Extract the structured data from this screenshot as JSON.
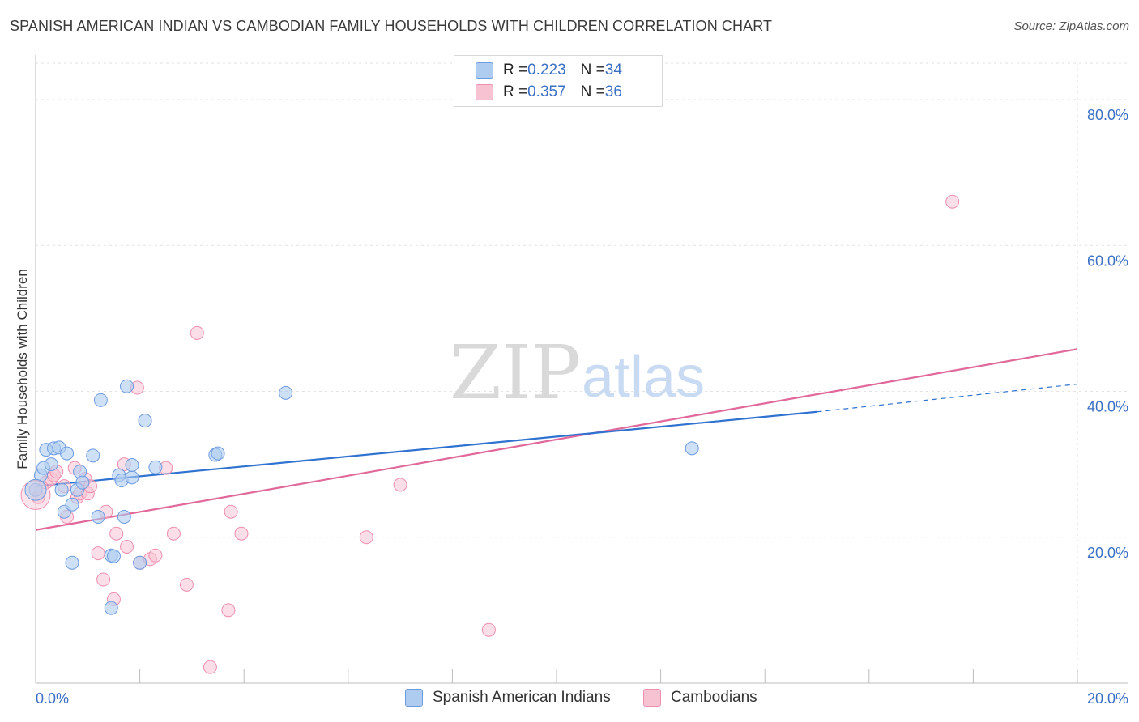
{
  "header": {
    "title": "SPANISH AMERICAN INDIAN VS CAMBODIAN FAMILY HOUSEHOLDS WITH CHILDREN CORRELATION CHART",
    "source": "Source: ZipAtlas.com"
  },
  "legend_top": {
    "rows": [
      {
        "r_label": "R = ",
        "r_value": "0.223",
        "n_label": "N = ",
        "n_value": "34"
      },
      {
        "r_label": "R = ",
        "r_value": "0.357",
        "n_label": "N = ",
        "n_value": "36"
      }
    ]
  },
  "legend_bottom": {
    "items": [
      "Spanish American Indians",
      "Cambodians"
    ]
  },
  "watermark": {
    "zip": "ZIP",
    "atlas": "atlas"
  },
  "colors": {
    "blue_fill": "#aecbf0",
    "blue_stroke": "#6d9be0",
    "blue_line": "#2f72d0",
    "pink_fill": "#f7c3d3",
    "pink_stroke": "#ee8fae",
    "pink_line": "#e0689a",
    "tick_label": "#3b6fc4",
    "grid": "#e2e2e2"
  },
  "chart_data": {
    "type": "scatter",
    "title": "SPANISH AMERICAN INDIAN VS CAMBODIAN FAMILY HOUSEHOLDS WITH CHILDREN CORRELATION CHART",
    "xlabel": "",
    "ylabel": "Family Households with Children",
    "xlim": [
      0,
      20
    ],
    "ylim": [
      0,
      85
    ],
    "x_tick_labels": [
      "0.0%",
      "20.0%"
    ],
    "y_ticks": [
      20,
      40,
      60,
      80
    ],
    "y_tick_labels": [
      "20.0%",
      "40.0%",
      "60.0%",
      "80.0%"
    ],
    "grid": true,
    "series": [
      {
        "name": "Spanish American Indians",
        "r": 0.223,
        "n": 34,
        "points": [
          [
            0.0,
            26.5
          ],
          [
            0.1,
            28.5
          ],
          [
            0.15,
            29.5
          ],
          [
            0.2,
            32.0
          ],
          [
            0.3,
            30.0
          ],
          [
            0.35,
            32.2
          ],
          [
            0.45,
            32.3
          ],
          [
            0.5,
            26.5
          ],
          [
            0.55,
            23.5
          ],
          [
            0.6,
            31.5
          ],
          [
            0.7,
            24.5
          ],
          [
            0.7,
            16.5
          ],
          [
            0.8,
            26.5
          ],
          [
            0.85,
            29.0
          ],
          [
            0.9,
            27.5
          ],
          [
            1.1,
            31.2
          ],
          [
            1.2,
            22.8
          ],
          [
            1.25,
            38.8
          ],
          [
            1.45,
            17.5
          ],
          [
            1.5,
            17.4
          ],
          [
            1.6,
            28.5
          ],
          [
            1.65,
            27.8
          ],
          [
            1.7,
            22.8
          ],
          [
            1.75,
            40.7
          ],
          [
            1.85,
            28.2
          ],
          [
            1.85,
            29.9
          ],
          [
            2.0,
            16.5
          ],
          [
            2.1,
            36.0
          ],
          [
            2.3,
            29.6
          ],
          [
            3.45,
            31.3
          ],
          [
            3.5,
            31.5
          ],
          [
            4.8,
            39.8
          ],
          [
            1.45,
            10.3
          ],
          [
            12.6,
            32.2
          ]
        ],
        "trend": {
          "x": [
            0,
            15.0
          ],
          "y": [
            27.0,
            37.2
          ],
          "dashed_to": [
            20,
            41.0
          ]
        }
      },
      {
        "name": "Cambodians",
        "r": 0.357,
        "n": 36,
        "points": [
          [
            0.05,
            25.5
          ],
          [
            0.2,
            27.5
          ],
          [
            0.3,
            28.0
          ],
          [
            0.35,
            28.5
          ],
          [
            0.4,
            29.0
          ],
          [
            0.55,
            27.0
          ],
          [
            0.6,
            22.8
          ],
          [
            0.75,
            29.5
          ],
          [
            0.8,
            25.5
          ],
          [
            0.85,
            26.0
          ],
          [
            0.95,
            28.0
          ],
          [
            1.0,
            26.0
          ],
          [
            1.05,
            27.0
          ],
          [
            1.2,
            17.8
          ],
          [
            1.3,
            14.2
          ],
          [
            1.35,
            23.5
          ],
          [
            1.5,
            11.5
          ],
          [
            1.55,
            20.5
          ],
          [
            1.7,
            30.0
          ],
          [
            1.75,
            18.7
          ],
          [
            1.95,
            40.5
          ],
          [
            2.0,
            16.5
          ],
          [
            2.2,
            17.0
          ],
          [
            2.3,
            17.5
          ],
          [
            2.5,
            29.5
          ],
          [
            2.65,
            20.5
          ],
          [
            2.9,
            13.5
          ],
          [
            3.1,
            48.0
          ],
          [
            3.35,
            2.2
          ],
          [
            3.7,
            10.0
          ],
          [
            3.75,
            23.5
          ],
          [
            3.95,
            20.5
          ],
          [
            6.35,
            20.0
          ],
          [
            7.0,
            27.2
          ],
          [
            8.7,
            7.3
          ],
          [
            17.6,
            66.0
          ]
        ],
        "trend": {
          "x": [
            0,
            20
          ],
          "y": [
            21.0,
            45.8
          ]
        }
      }
    ]
  }
}
